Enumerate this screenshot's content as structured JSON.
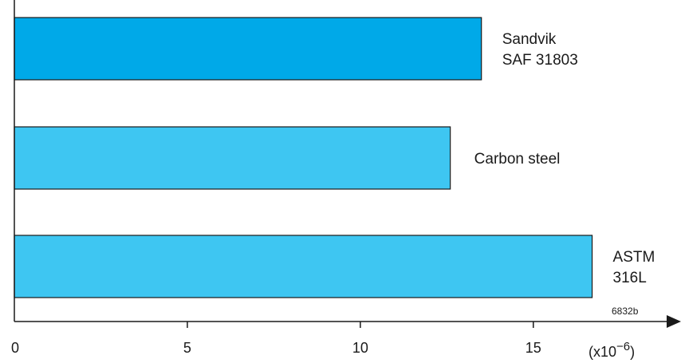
{
  "chart_data": {
    "type": "bar",
    "orientation": "horizontal",
    "categories": [
      "Sandvik\nSAF 31803",
      "Carbon steel",
      "ASTM\n316L"
    ],
    "values": [
      13.5,
      12.6,
      16.7
    ],
    "bar_colors": [
      "#00a9e8",
      "#3ec6f2",
      "#3ec6f2"
    ],
    "xlim": [
      0,
      18.9
    ],
    "xticks": [
      0,
      5,
      10,
      15
    ],
    "x_unit_label": "(x10",
    "x_unit_exponent": "−6",
    "x_unit_close": ")",
    "annotation": "6832b",
    "grid": false,
    "legend": "none"
  }
}
